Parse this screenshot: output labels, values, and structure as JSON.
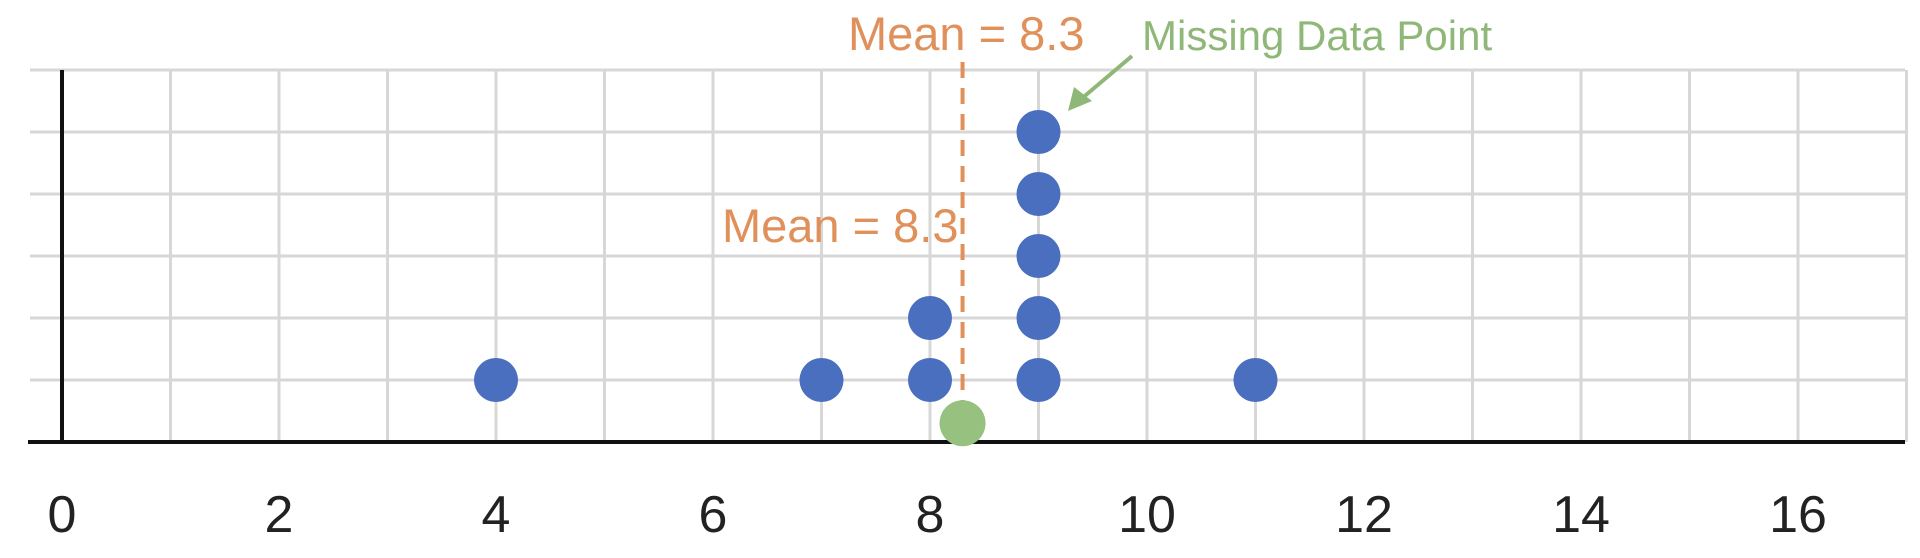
{
  "chart_data": {
    "type": "scatter",
    "title": "",
    "xlabel": "",
    "ylabel": "",
    "xlim": [
      0,
      17
    ],
    "x_ticks": [
      0,
      2,
      4,
      6,
      8,
      10,
      12,
      14,
      16
    ],
    "x_tick_labels": [
      "0",
      "2",
      "4",
      "6",
      "8",
      "10",
      "12",
      "14",
      "16"
    ],
    "y_levels": 6,
    "grid": true,
    "point_color": "#4a6fbf",
    "missing_color": "#96c17e",
    "mean_color": "#e0915b",
    "points": [
      {
        "x": 4,
        "y": 1
      },
      {
        "x": 7,
        "y": 1
      },
      {
        "x": 8,
        "y": 1
      },
      {
        "x": 8,
        "y": 2
      },
      {
        "x": 9,
        "y": 1
      },
      {
        "x": 9,
        "y": 2
      },
      {
        "x": 9,
        "y": 3
      },
      {
        "x": 9,
        "y": 4
      },
      {
        "x": 9,
        "y": 5
      },
      {
        "x": 11,
        "y": 1
      }
    ],
    "missing_point": {
      "x": 8.3,
      "y": 0.4
    },
    "mean": 8.3,
    "annotations": [
      {
        "text": "Mean = 8.3"
      },
      {
        "text": "Mean = 8.3"
      },
      {
        "text": "Missing Data Point"
      }
    ]
  }
}
